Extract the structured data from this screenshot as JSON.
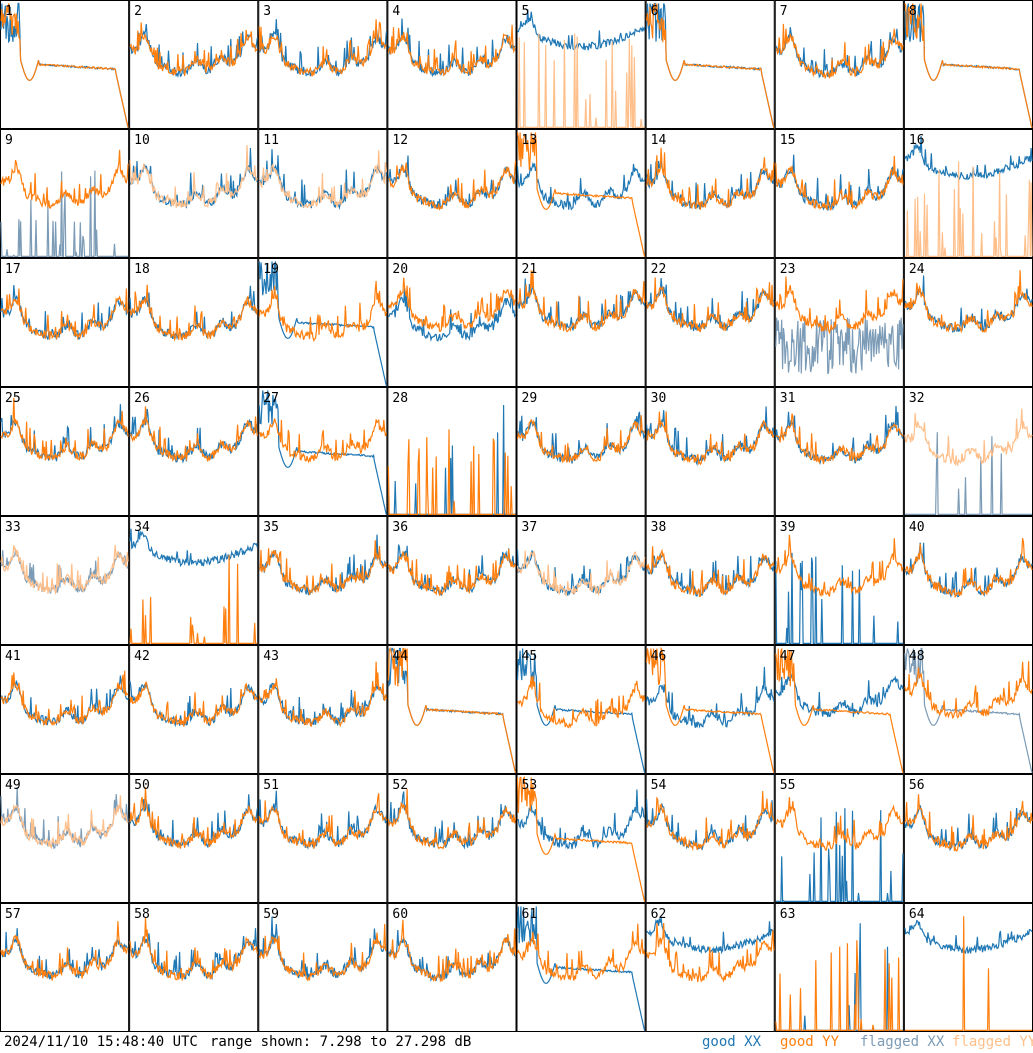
{
  "footer": {
    "timestamp": "2024/11/10 15:48:40 UTC",
    "range": "range shown: 7.298 to 27.298 dB"
  },
  "legend": [
    {
      "label": "good XX",
      "color": "#1f77b4"
    },
    {
      "label": "good YY",
      "color": "#ff7f0e"
    },
    {
      "label": "flagged XX",
      "color": "#7c9bb6"
    },
    {
      "label": "flagged YY",
      "color": "#ffbf8a"
    }
  ],
  "chart_data": {
    "type": "line",
    "layout": "8x8 small multiples",
    "y_range_db": [
      7.298,
      27.298
    ],
    "series_names": [
      "XX",
      "YY"
    ],
    "panels": [
      {
        "id": 1,
        "xx": "saturated",
        "yy": "saturated",
        "xx_flagged": false,
        "yy_flagged": false
      },
      {
        "id": 2,
        "xx": "normal",
        "yy": "normal",
        "xx_flagged": false,
        "yy_flagged": false
      },
      {
        "id": 3,
        "xx": "normal",
        "yy": "normal",
        "xx_flagged": false,
        "yy_flagged": false
      },
      {
        "id": 4,
        "xx": "normal",
        "yy": "normal",
        "xx_flagged": false,
        "yy_flagged": false
      },
      {
        "id": 5,
        "xx": "high",
        "yy": "spiky",
        "xx_flagged": false,
        "yy_flagged": true
      },
      {
        "id": 6,
        "xx": "saturated",
        "yy": "saturated",
        "xx_flagged": false,
        "yy_flagged": false
      },
      {
        "id": 7,
        "xx": "normal",
        "yy": "normal",
        "xx_flagged": false,
        "yy_flagged": false
      },
      {
        "id": 8,
        "xx": "saturated",
        "yy": "saturated",
        "xx_flagged": false,
        "yy_flagged": false
      },
      {
        "id": 9,
        "xx": "spiky",
        "yy": "normal",
        "xx_flagged": true,
        "yy_flagged": false
      },
      {
        "id": 10,
        "xx": "normal",
        "yy": "normal",
        "xx_flagged": false,
        "yy_flagged": true
      },
      {
        "id": 11,
        "xx": "normal",
        "yy": "normal",
        "xx_flagged": false,
        "yy_flagged": true
      },
      {
        "id": 12,
        "xx": "normal",
        "yy": "normal",
        "xx_flagged": false,
        "yy_flagged": false
      },
      {
        "id": 13,
        "xx": "normal",
        "yy": "saturated",
        "xx_flagged": false,
        "yy_flagged": false
      },
      {
        "id": 14,
        "xx": "normal",
        "yy": "normal",
        "xx_flagged": false,
        "yy_flagged": false
      },
      {
        "id": 15,
        "xx": "normal",
        "yy": "normal",
        "xx_flagged": false,
        "yy_flagged": false
      },
      {
        "id": 16,
        "xx": "high",
        "yy": "spiky",
        "xx_flagged": false,
        "yy_flagged": true
      },
      {
        "id": 17,
        "xx": "normal",
        "yy": "normal",
        "xx_flagged": false,
        "yy_flagged": false
      },
      {
        "id": 18,
        "xx": "normal",
        "yy": "normal",
        "xx_flagged": false,
        "yy_flagged": false
      },
      {
        "id": 19,
        "xx": "saturated",
        "yy": "normal",
        "xx_flagged": false,
        "yy_flagged": false
      },
      {
        "id": 20,
        "xx": "normal",
        "yy": "normal",
        "xx_flagged": false,
        "yy_flagged": false
      },
      {
        "id": 21,
        "xx": "normal",
        "yy": "normal",
        "xx_flagged": false,
        "yy_flagged": false
      },
      {
        "id": 22,
        "xx": "normal",
        "yy": "normal",
        "xx_flagged": false,
        "yy_flagged": false
      },
      {
        "id": 23,
        "xx": "noisy",
        "yy": "normal",
        "xx_flagged": true,
        "yy_flagged": false
      },
      {
        "id": 24,
        "xx": "normal",
        "yy": "normal",
        "xx_flagged": false,
        "yy_flagged": false
      },
      {
        "id": 25,
        "xx": "normal",
        "yy": "normal",
        "xx_flagged": false,
        "yy_flagged": false
      },
      {
        "id": 26,
        "xx": "normal",
        "yy": "normal",
        "xx_flagged": false,
        "yy_flagged": false
      },
      {
        "id": 27,
        "xx": "saturated",
        "yy": "normal",
        "xx_flagged": false,
        "yy_flagged": false
      },
      {
        "id": 28,
        "xx": "dead",
        "yy": "spiky",
        "xx_flagged": false,
        "yy_flagged": false
      },
      {
        "id": 29,
        "xx": "normal",
        "yy": "normal",
        "xx_flagged": false,
        "yy_flagged": false
      },
      {
        "id": 30,
        "xx": "normal",
        "yy": "normal",
        "xx_flagged": false,
        "yy_flagged": false
      },
      {
        "id": 31,
        "xx": "normal",
        "yy": "normal",
        "xx_flagged": false,
        "yy_flagged": false
      },
      {
        "id": 32,
        "xx": "dead",
        "yy": "normal",
        "xx_flagged": true,
        "yy_flagged": true
      },
      {
        "id": 33,
        "xx": "normal",
        "yy": "normal",
        "xx_flagged": true,
        "yy_flagged": true
      },
      {
        "id": 34,
        "xx": "high",
        "yy": "spiky",
        "xx_flagged": false,
        "yy_flagged": false
      },
      {
        "id": 35,
        "xx": "normal",
        "yy": "normal",
        "xx_flagged": false,
        "yy_flagged": false
      },
      {
        "id": 36,
        "xx": "normal",
        "yy": "normal",
        "xx_flagged": false,
        "yy_flagged": false
      },
      {
        "id": 37,
        "xx": "normal",
        "yy": "normal",
        "xx_flagged": false,
        "yy_flagged": true
      },
      {
        "id": 38,
        "xx": "normal",
        "yy": "normal",
        "xx_flagged": false,
        "yy_flagged": false
      },
      {
        "id": 39,
        "xx": "spiky",
        "yy": "normal",
        "xx_flagged": false,
        "yy_flagged": false
      },
      {
        "id": 40,
        "xx": "normal",
        "yy": "normal",
        "xx_flagged": false,
        "yy_flagged": false
      },
      {
        "id": 41,
        "xx": "normal",
        "yy": "normal",
        "xx_flagged": false,
        "yy_flagged": false
      },
      {
        "id": 42,
        "xx": "normal",
        "yy": "normal",
        "xx_flagged": false,
        "yy_flagged": false
      },
      {
        "id": 43,
        "xx": "normal",
        "yy": "normal",
        "xx_flagged": false,
        "yy_flagged": false
      },
      {
        "id": 44,
        "xx": "saturated",
        "yy": "saturated",
        "xx_flagged": false,
        "yy_flagged": false
      },
      {
        "id": 45,
        "xx": "saturated",
        "yy": "normal",
        "xx_flagged": false,
        "yy_flagged": false
      },
      {
        "id": 46,
        "xx": "normal",
        "yy": "saturated",
        "xx_flagged": false,
        "yy_flagged": false
      },
      {
        "id": 47,
        "xx": "normal",
        "yy": "saturated",
        "xx_flagged": false,
        "yy_flagged": false
      },
      {
        "id": 48,
        "xx": "saturated",
        "yy": "normal",
        "xx_flagged": true,
        "yy_flagged": false
      },
      {
        "id": 49,
        "xx": "normal",
        "yy": "normal",
        "xx_flagged": true,
        "yy_flagged": true
      },
      {
        "id": 50,
        "xx": "normal",
        "yy": "normal",
        "xx_flagged": false,
        "yy_flagged": false
      },
      {
        "id": 51,
        "xx": "normal",
        "yy": "normal",
        "xx_flagged": false,
        "yy_flagged": false
      },
      {
        "id": 52,
        "xx": "normal",
        "yy": "normal",
        "xx_flagged": false,
        "yy_flagged": false
      },
      {
        "id": 53,
        "xx": "normal",
        "yy": "saturated",
        "xx_flagged": false,
        "yy_flagged": false
      },
      {
        "id": 54,
        "xx": "normal",
        "yy": "normal",
        "xx_flagged": false,
        "yy_flagged": false
      },
      {
        "id": 55,
        "xx": "spiky",
        "yy": "normal",
        "xx_flagged": false,
        "yy_flagged": false
      },
      {
        "id": 56,
        "xx": "normal",
        "yy": "normal",
        "xx_flagged": false,
        "yy_flagged": false
      },
      {
        "id": 57,
        "xx": "normal",
        "yy": "normal",
        "xx_flagged": false,
        "yy_flagged": false
      },
      {
        "id": 58,
        "xx": "normal",
        "yy": "normal",
        "xx_flagged": false,
        "yy_flagged": false
      },
      {
        "id": 59,
        "xx": "normal",
        "yy": "normal",
        "xx_flagged": false,
        "yy_flagged": false
      },
      {
        "id": 60,
        "xx": "normal",
        "yy": "normal",
        "xx_flagged": false,
        "yy_flagged": false
      },
      {
        "id": 61,
        "xx": "saturated",
        "yy": "normal",
        "xx_flagged": false,
        "yy_flagged": false
      },
      {
        "id": 62,
        "xx": "high",
        "yy": "normal",
        "xx_flagged": false,
        "yy_flagged": false
      },
      {
        "id": 63,
        "xx": "dead",
        "yy": "spiky",
        "xx_flagged": false,
        "yy_flagged": false
      },
      {
        "id": 64,
        "xx": "high",
        "yy": "dead",
        "xx_flagged": false,
        "yy_flagged": false
      }
    ]
  }
}
